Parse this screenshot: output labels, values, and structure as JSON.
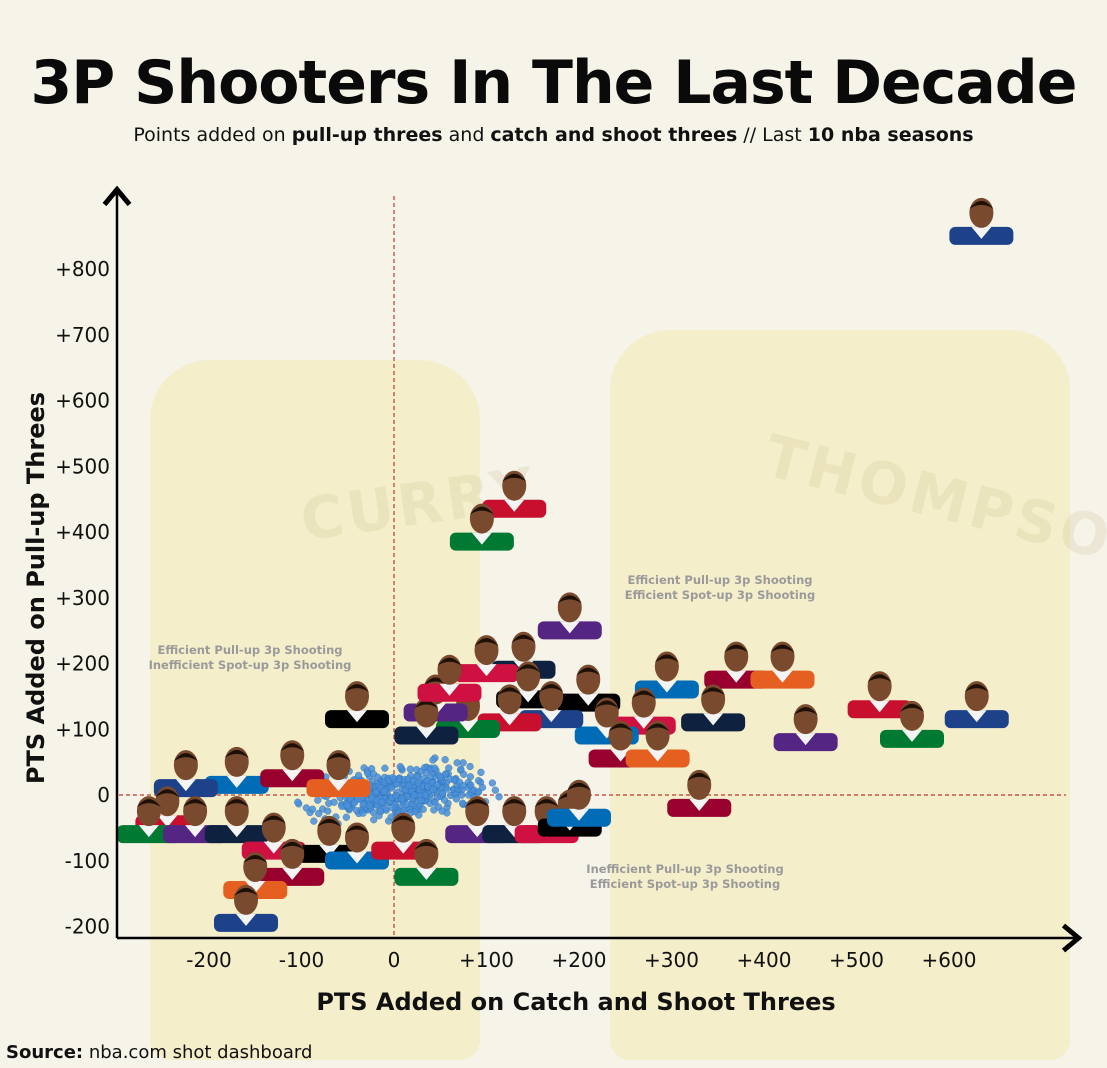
{
  "title": "3P Shooters In The Last Decade",
  "subtitle": {
    "part1": "Points added on ",
    "bold1": "pull-up threes",
    "part2": " and ",
    "bold2": "catch and shoot threes",
    "part3": " // Last ",
    "bold3": "10 nba seasons"
  },
  "source": {
    "label": "Source:",
    "text": " nba.com shot dashboard"
  },
  "background": {
    "jersey_left": "CURRY",
    "jersey_right": "THOMPSON"
  },
  "quadrant_labels": {
    "top_right": [
      "Efficient Pull-up 3p Shooting",
      "Efficient Spot-up 3p Shooting"
    ],
    "top_left": [
      "Efficient Pull-up 3p Shooting",
      "Inefficient Spot-up 3p Shooting"
    ],
    "bottom_right": [
      "Inefficient Pull-up 3p Shooting",
      "Efficient Spot-up 3p Shooting"
    ]
  },
  "colors": {
    "dots": "#4a90d9",
    "refline": "#c0392b",
    "jersey": "#f0e494"
  },
  "chart_data": {
    "type": "scatter",
    "xlabel": "PTS Added on Catch and Shoot Threes",
    "ylabel": "PTS Added on Pull-up Threes",
    "xticks": [
      -200,
      -100,
      0,
      100,
      200,
      300,
      400,
      500,
      600
    ],
    "xtick_labels": [
      "-200",
      "-100",
      "0",
      "+100",
      "+200",
      "+300",
      "+400",
      "+500",
      "+600"
    ],
    "yticks": [
      -200,
      -100,
      0,
      100,
      200,
      300,
      400,
      500,
      600,
      700,
      800
    ],
    "ytick_labels": [
      "-200",
      "-100",
      "0",
      "+100",
      "+200",
      "+300",
      "+400",
      "+500",
      "+600",
      "+700",
      "+800"
    ],
    "xlim": [
      -300,
      740
    ],
    "ylim": [
      -215,
      910
    ],
    "reference_lines": {
      "x": 0,
      "y": 0
    },
    "highlighted_players": [
      {
        "x": 635,
        "y": 855
      },
      {
        "x": 130,
        "y": 440
      },
      {
        "x": 95,
        "y": 390
      },
      {
        "x": 190,
        "y": 255
      },
      {
        "x": 140,
        "y": 195
      },
      {
        "x": 100,
        "y": 190
      },
      {
        "x": 145,
        "y": 150
      },
      {
        "x": 295,
        "y": 165
      },
      {
        "x": 370,
        "y": 180
      },
      {
        "x": 420,
        "y": 180
      },
      {
        "x": 630,
        "y": 120
      },
      {
        "x": 525,
        "y": 135
      },
      {
        "x": 560,
        "y": 90
      },
      {
        "x": 445,
        "y": 85
      },
      {
        "x": 345,
        "y": 115
      },
      {
        "x": 270,
        "y": 110
      },
      {
        "x": 210,
        "y": 145
      },
      {
        "x": 230,
        "y": 95
      },
      {
        "x": 245,
        "y": 60
      },
      {
        "x": 285,
        "y": 60
      },
      {
        "x": 170,
        "y": 120
      },
      {
        "x": 125,
        "y": 115
      },
      {
        "x": 80,
        "y": 105
      },
      {
        "x": 45,
        "y": 130
      },
      {
        "x": 35,
        "y": 95
      },
      {
        "x": 60,
        "y": 160
      },
      {
        "x": -40,
        "y": 120
      },
      {
        "x": -170,
        "y": 20
      },
      {
        "x": -110,
        "y": 30
      },
      {
        "x": -60,
        "y": 15
      },
      {
        "x": -225,
        "y": 15
      },
      {
        "x": -245,
        "y": -40
      },
      {
        "x": -265,
        "y": -55
      },
      {
        "x": -215,
        "y": -55
      },
      {
        "x": -170,
        "y": -55
      },
      {
        "x": -130,
        "y": -80
      },
      {
        "x": -70,
        "y": -85
      },
      {
        "x": -40,
        "y": -95
      },
      {
        "x": -110,
        "y": -120
      },
      {
        "x": -150,
        "y": -140
      },
      {
        "x": -160,
        "y": -190
      },
      {
        "x": 10,
        "y": -80
      },
      {
        "x": 35,
        "y": -120
      },
      {
        "x": 90,
        "y": -55
      },
      {
        "x": 130,
        "y": -55
      },
      {
        "x": 165,
        "y": -55
      },
      {
        "x": 190,
        "y": -45
      },
      {
        "x": 200,
        "y": -30
      },
      {
        "x": 330,
        "y": -15
      }
    ],
    "cluster_summary": "dense cluster of small blue points around the origin"
  }
}
